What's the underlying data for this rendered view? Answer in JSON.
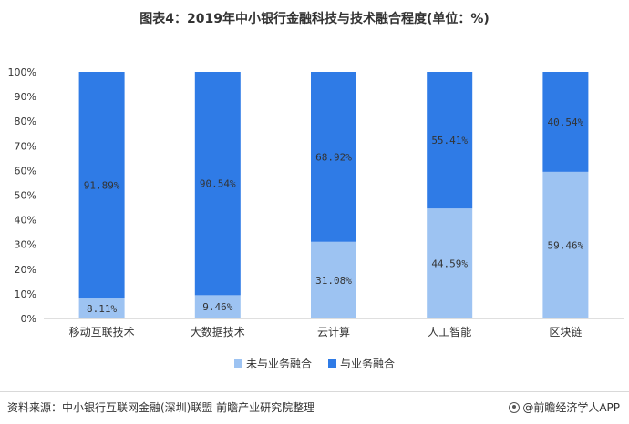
{
  "title": "图表4：2019年中小银行金融科技与技术融合程度(单位：%)",
  "source": "资料来源：中小银行互联网金融(深圳)联盟 前瞻产业研究院整理",
  "brand": "@前瞻经济学人APP",
  "colors": {
    "not_fused": "#9dc3f2",
    "fused": "#2f7be6",
    "grid": "#d9d9d9",
    "axis_text": "#333333"
  },
  "chart_data": {
    "type": "bar",
    "stacked": true,
    "categories": [
      "移动互联技术",
      "大数据技术",
      "云计算",
      "人工智能",
      "区块链"
    ],
    "series": [
      {
        "name": "未与业务融合",
        "values": [
          8.11,
          9.46,
          31.08,
          44.59,
          59.46
        ],
        "labels": [
          "8.11%",
          "9.46%",
          "31.08%",
          "44.59%",
          "59.46%"
        ]
      },
      {
        "name": "与业务融合",
        "values": [
          91.89,
          90.54,
          68.92,
          55.41,
          40.54
        ],
        "labels": [
          "91.89%",
          "90.54%",
          "68.92%",
          "55.41%",
          "40.54%"
        ]
      }
    ],
    "ylim": [
      0,
      100
    ],
    "yticks": [
      "0%",
      "10%",
      "20%",
      "30%",
      "40%",
      "50%",
      "60%",
      "70%",
      "80%",
      "90%",
      "100%"
    ],
    "legend_position": "bottom"
  }
}
